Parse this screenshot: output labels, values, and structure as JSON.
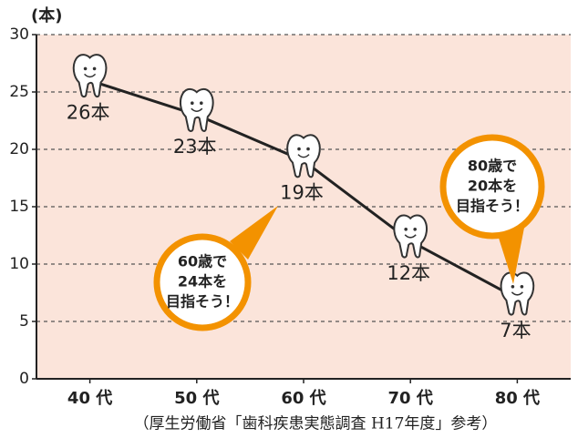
{
  "chart_data": {
    "type": "line",
    "y_label": "(本)",
    "categories": [
      "40 代",
      "50 代",
      "60 代",
      "70 代",
      "80 代"
    ],
    "values": [
      26,
      23,
      19,
      12,
      7
    ],
    "value_labels": [
      "26本",
      "23本",
      "19本",
      "12本",
      "7本"
    ],
    "color": "#222222",
    "background": "#fbe4da",
    "grid": true,
    "ylim": [
      0,
      30
    ],
    "yticks": [
      0,
      5,
      10,
      15,
      20,
      25,
      30
    ],
    "annotations": [
      {
        "lines": [
          "60歳で",
          "24本を",
          "目指そう！"
        ]
      },
      {
        "lines": [
          "80歳で",
          "20本を",
          "目指そう！"
        ]
      }
    ],
    "source": "（厚生労働省「歯科疾患実態調査 H17年度」参考）"
  }
}
